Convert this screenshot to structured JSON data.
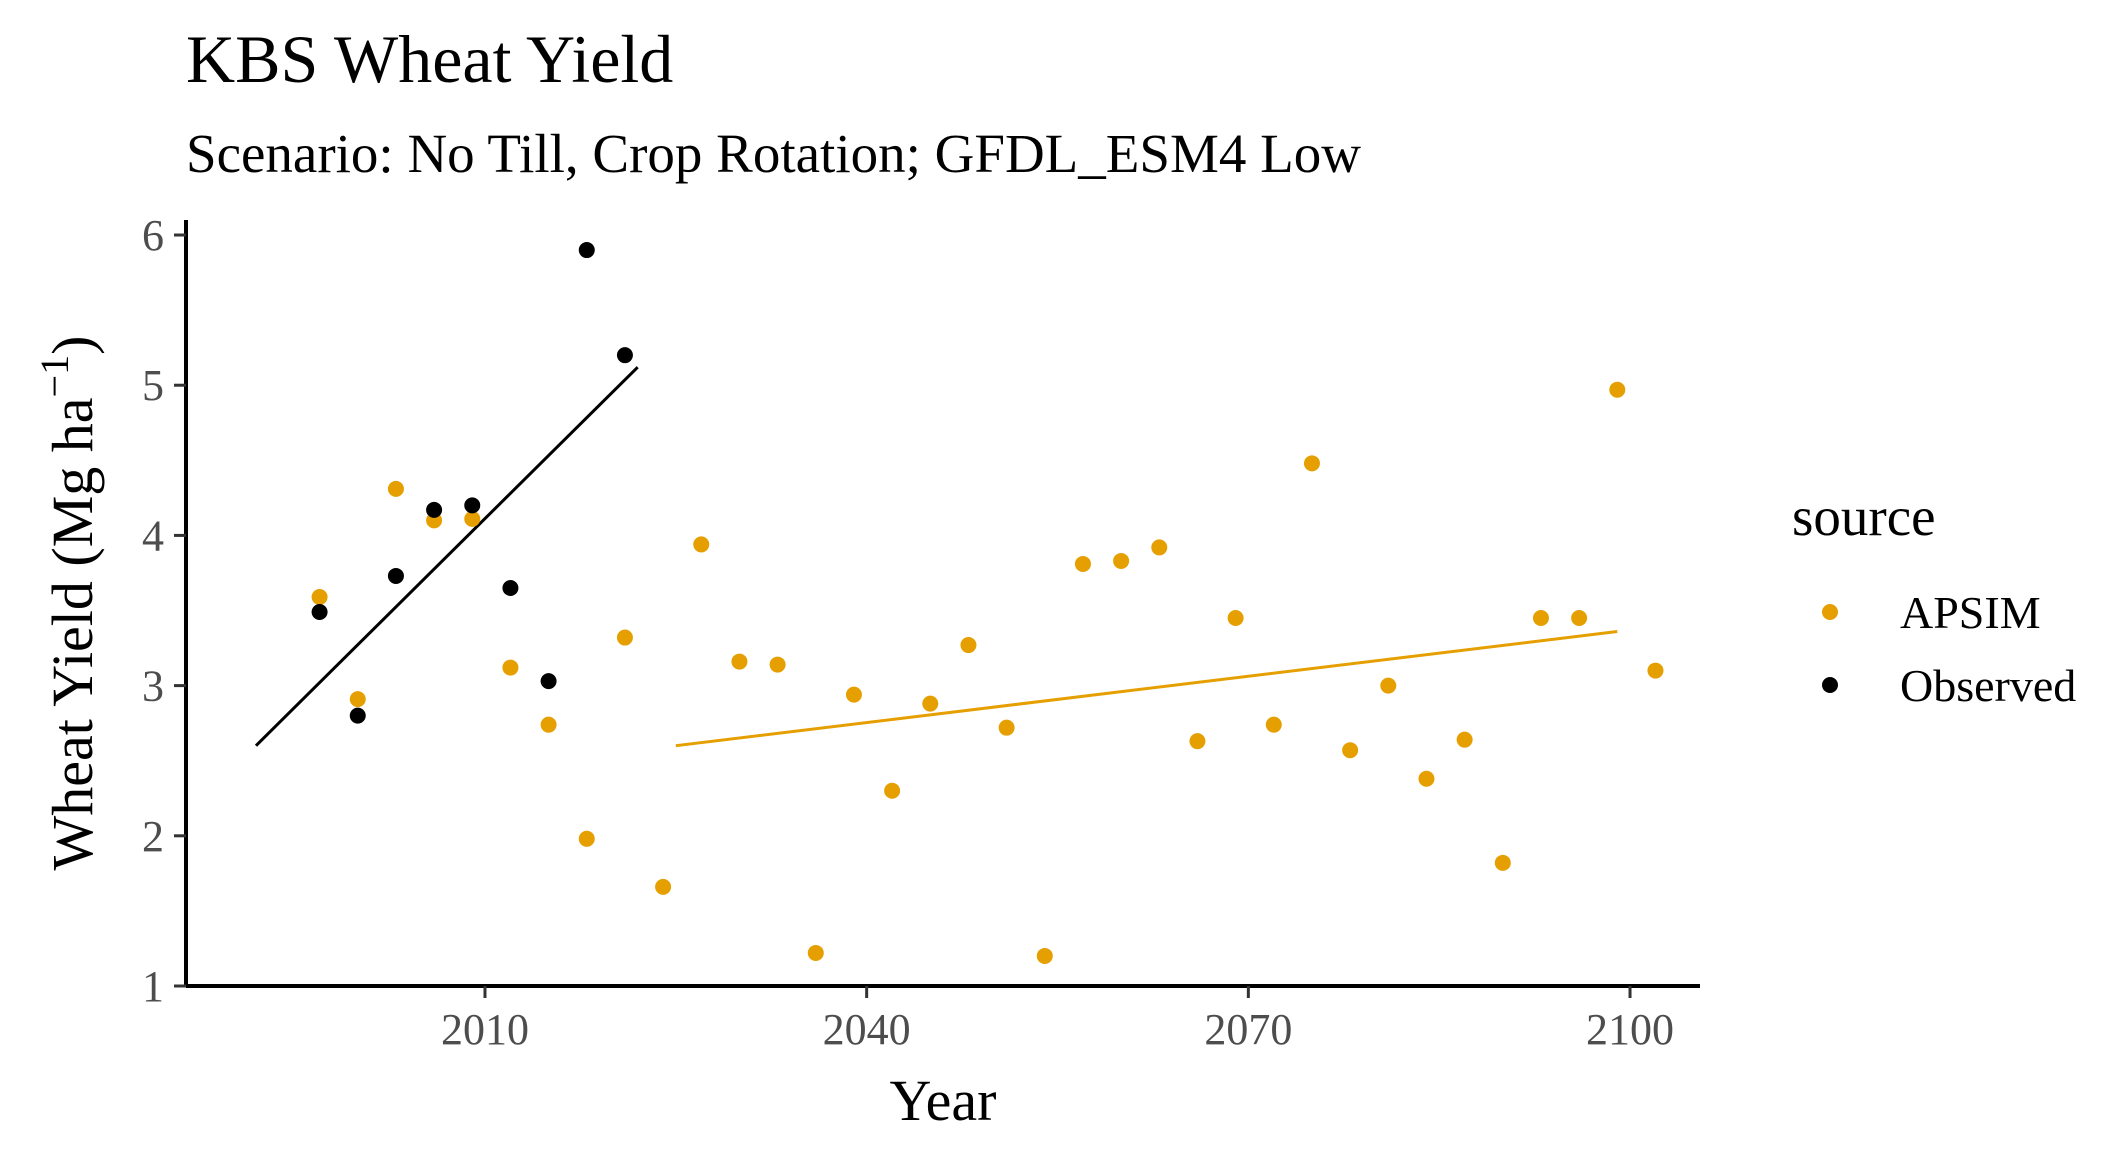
{
  "chart_data": {
    "type": "scatter",
    "title": "KBS Wheat Yield",
    "subtitle": "Scenario: No Till, Crop Rotation; GFDL_ESM4 Low",
    "xlabel": "Year",
    "ylabel": "Wheat Yield (Mg ha",
    "ylabel_superscript": "−1",
    "ylabel_suffix": ")",
    "xlim": [
      1986.5,
      2105.5
    ],
    "ylim": [
      1,
      6.1
    ],
    "xticks": [
      2010,
      2040,
      2070,
      2100
    ],
    "yticks": [
      1,
      2,
      3,
      4,
      5,
      6
    ],
    "grid": false,
    "legend": {
      "title": "source",
      "placement": "right"
    },
    "series": [
      {
        "name": "APSIM",
        "color": "#E69F00",
        "points": [
          [
            1997,
            3.59
          ],
          [
            2000,
            2.91
          ],
          [
            2003,
            4.31
          ],
          [
            2006,
            4.1
          ],
          [
            2009,
            4.11
          ],
          [
            2012,
            3.12
          ],
          [
            2015,
            2.74
          ],
          [
            2018,
            1.98
          ],
          [
            2021,
            3.32
          ],
          [
            2024,
            1.66
          ],
          [
            2027,
            3.94
          ],
          [
            2030,
            3.16
          ],
          [
            2033,
            3.14
          ],
          [
            2036,
            1.22
          ],
          [
            2039,
            2.94
          ],
          [
            2042,
            2.3
          ],
          [
            2045,
            2.88
          ],
          [
            2048,
            3.27
          ],
          [
            2051,
            2.72
          ],
          [
            2054,
            1.2
          ],
          [
            2057,
            3.81
          ],
          [
            2060,
            3.83
          ],
          [
            2063,
            3.92
          ],
          [
            2066,
            2.63
          ],
          [
            2069,
            3.45
          ],
          [
            2072,
            2.74
          ],
          [
            2075,
            4.48
          ],
          [
            2078,
            2.57
          ],
          [
            2081,
            3.0
          ],
          [
            2084,
            2.38
          ],
          [
            2087,
            2.64
          ],
          [
            2090,
            1.82
          ],
          [
            2093,
            3.45
          ],
          [
            2096,
            3.45
          ],
          [
            2099,
            4.97
          ],
          [
            2102,
            3.1
          ]
        ],
        "trend": {
          "x0": 2025,
          "y0": 2.6,
          "x1": 2099,
          "y1": 3.36
        }
      },
      {
        "name": "Observed",
        "color": "#000000",
        "points": [
          [
            1997,
            3.49
          ],
          [
            2000,
            2.8
          ],
          [
            2003,
            3.73
          ],
          [
            2006,
            4.17
          ],
          [
            2009,
            4.2
          ],
          [
            2012,
            3.65
          ],
          [
            2015,
            3.03
          ],
          [
            2018,
            5.9
          ],
          [
            2021,
            5.2
          ]
        ],
        "trend": {
          "x0": 1992,
          "y0": 2.6,
          "x1": 2022,
          "y1": 5.12
        }
      }
    ]
  }
}
